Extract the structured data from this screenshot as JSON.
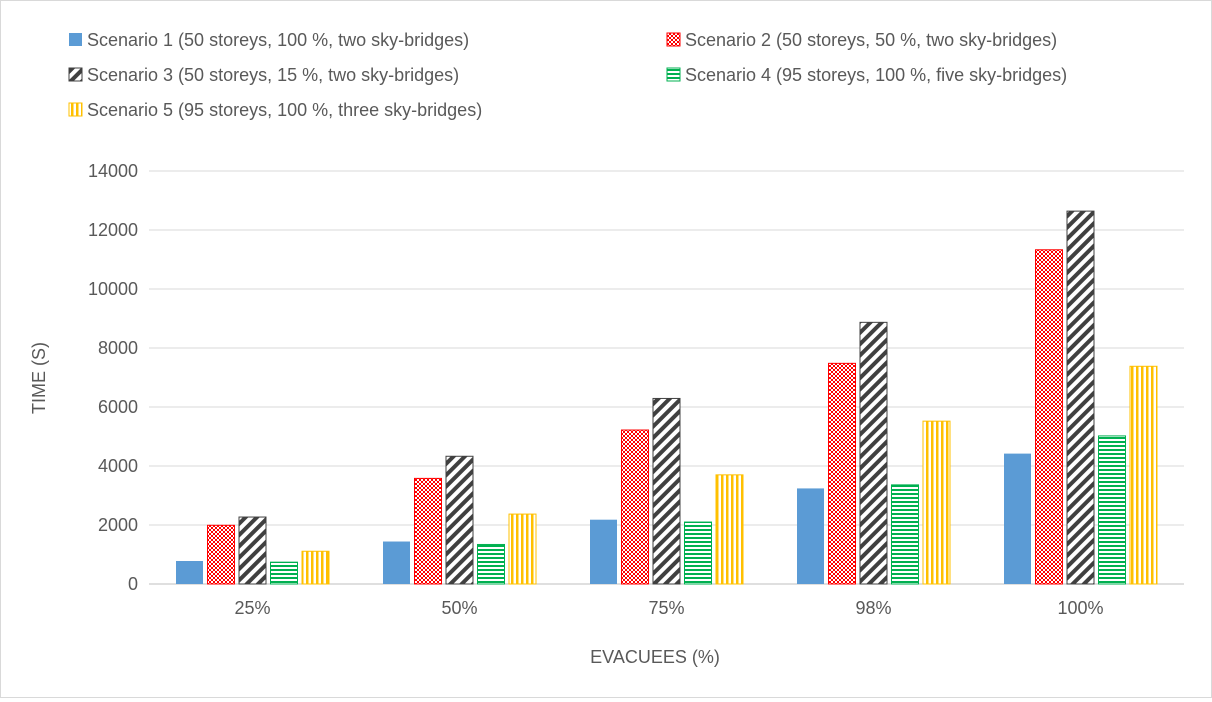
{
  "chart_data": {
    "type": "bar",
    "title": "",
    "xlabel": "EVACUEES (%)",
    "ylabel": "TIME (S)",
    "ylim": [
      0,
      14000
    ],
    "yticks": [
      "0",
      "2000",
      "4000",
      "6000",
      "8000",
      "10000",
      "12000",
      "14000"
    ],
    "grid": true,
    "legend_position": "top",
    "categories": [
      "25%",
      "50%",
      "75%",
      "98%",
      "100%"
    ],
    "series": [
      {
        "name": "Scenario 1 (50 storeys, 100 %, two sky-bridges)",
        "pattern": "solid",
        "color": "#5b9bd5",
        "values": [
          780,
          1440,
          2180,
          3240,
          4420
        ]
      },
      {
        "name": "Scenario 2 (50 storeys, 50 %, two sky-bridges)",
        "pattern": "checker",
        "color": "#ff0000",
        "values": [
          1990,
          3580,
          5220,
          7480,
          11330
        ]
      },
      {
        "name": "Scenario 3 (50 storeys, 15 %, two sky-bridges)",
        "pattern": "diagonal",
        "color": "#404040",
        "values": [
          2270,
          4330,
          6290,
          8870,
          12640
        ]
      },
      {
        "name": "Scenario 4 (95 storeys, 100 %, five sky-bridges)",
        "pattern": "horizontal",
        "color": "#00b050",
        "values": [
          740,
          1340,
          2100,
          3360,
          5020
        ]
      },
      {
        "name": "Scenario 5 (95 storeys, 100 %, three sky-bridges)",
        "pattern": "vertical",
        "color": "#ffc000",
        "values": [
          1110,
          2370,
          3700,
          5520,
          7380
        ]
      }
    ]
  }
}
